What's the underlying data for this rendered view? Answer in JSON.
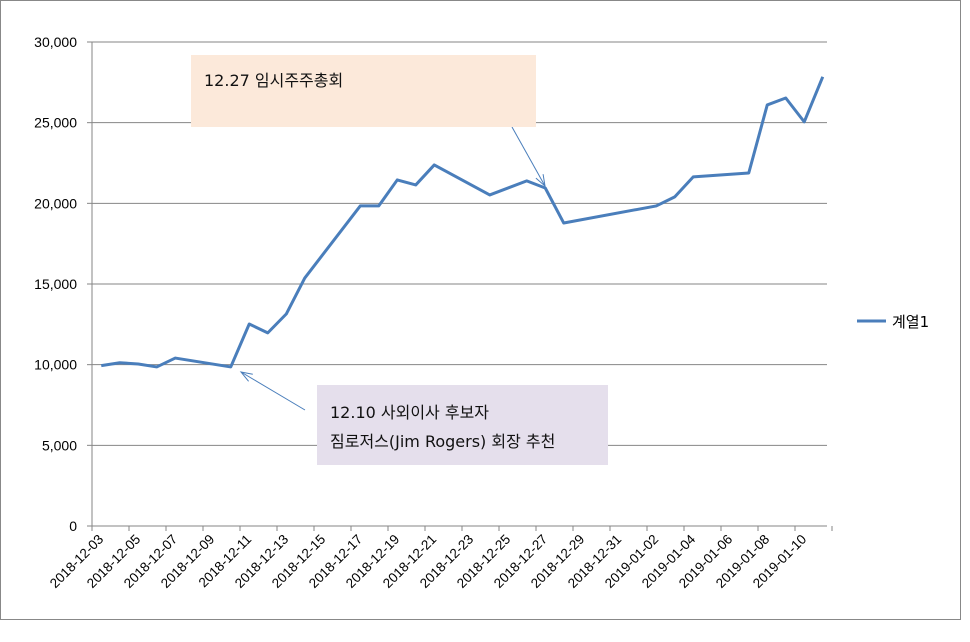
{
  "chart_data": {
    "type": "line",
    "title": "",
    "xlabel": "",
    "ylabel": "",
    "ylim": [
      0,
      30000
    ],
    "yticks": [
      0,
      5000,
      10000,
      15000,
      20000,
      25000,
      30000
    ],
    "ytick_labels": [
      "0",
      "5,000",
      "10,000",
      "15,000",
      "20,000",
      "25,000",
      "30,000"
    ],
    "xtick_labels": [
      "2018-12-03",
      "2018-12-05",
      "2018-12-07",
      "2018-12-09",
      "2018-12-11",
      "2018-12-13",
      "2018-12-15",
      "2018-12-17",
      "2018-12-19",
      "2018-12-21",
      "2018-12-23",
      "2018-12-25",
      "2018-12-27",
      "2018-12-29",
      "2018-12-31",
      "2019-01-02",
      "2019-01-04",
      "2019-01-06",
      "2019-01-08",
      "2019-01-10"
    ],
    "grid": true,
    "legend": "right",
    "series": [
      {
        "name": "계열1",
        "color": "#4a7ebb",
        "points": [
          {
            "x": "2018-12-03",
            "y": 9940
          },
          {
            "x": "2018-12-04",
            "y": 10120
          },
          {
            "x": "2018-12-05",
            "y": 10040
          },
          {
            "x": "2018-12-06",
            "y": 9860
          },
          {
            "x": "2018-12-07",
            "y": 10410
          },
          {
            "x": "2018-12-10",
            "y": 9860
          },
          {
            "x": "2018-12-11",
            "y": 12520
          },
          {
            "x": "2018-12-12",
            "y": 11970
          },
          {
            "x": "2018-12-13",
            "y": 13140
          },
          {
            "x": "2018-12-14",
            "y": 15370
          },
          {
            "x": "2018-12-17",
            "y": 19840
          },
          {
            "x": "2018-12-18",
            "y": 19840
          },
          {
            "x": "2018-12-19",
            "y": 21450
          },
          {
            "x": "2018-12-20",
            "y": 21140
          },
          {
            "x": "2018-12-21",
            "y": 22380
          },
          {
            "x": "2018-12-24",
            "y": 20520
          },
          {
            "x": "2018-12-26",
            "y": 21390
          },
          {
            "x": "2018-12-27",
            "y": 20950
          },
          {
            "x": "2018-12-28",
            "y": 18780
          },
          {
            "x": "2019-01-02",
            "y": 19840
          },
          {
            "x": "2019-01-03",
            "y": 20400
          },
          {
            "x": "2019-01-04",
            "y": 21640
          },
          {
            "x": "2019-01-07",
            "y": 21880
          },
          {
            "x": "2019-01-08",
            "y": 26100
          },
          {
            "x": "2019-01-09",
            "y": 26530
          },
          {
            "x": "2019-01-10",
            "y": 25050
          },
          {
            "x": "2019-01-11",
            "y": 27840
          }
        ]
      }
    ],
    "annotations": [
      {
        "text": "12.27 임시주주총회",
        "target": "2018-12-27"
      },
      {
        "line1": "12.10 사외이사 후보자",
        "line2": "짐로저스(Jim Rogers)  회장 추천",
        "target": "2018-12-10"
      }
    ]
  }
}
